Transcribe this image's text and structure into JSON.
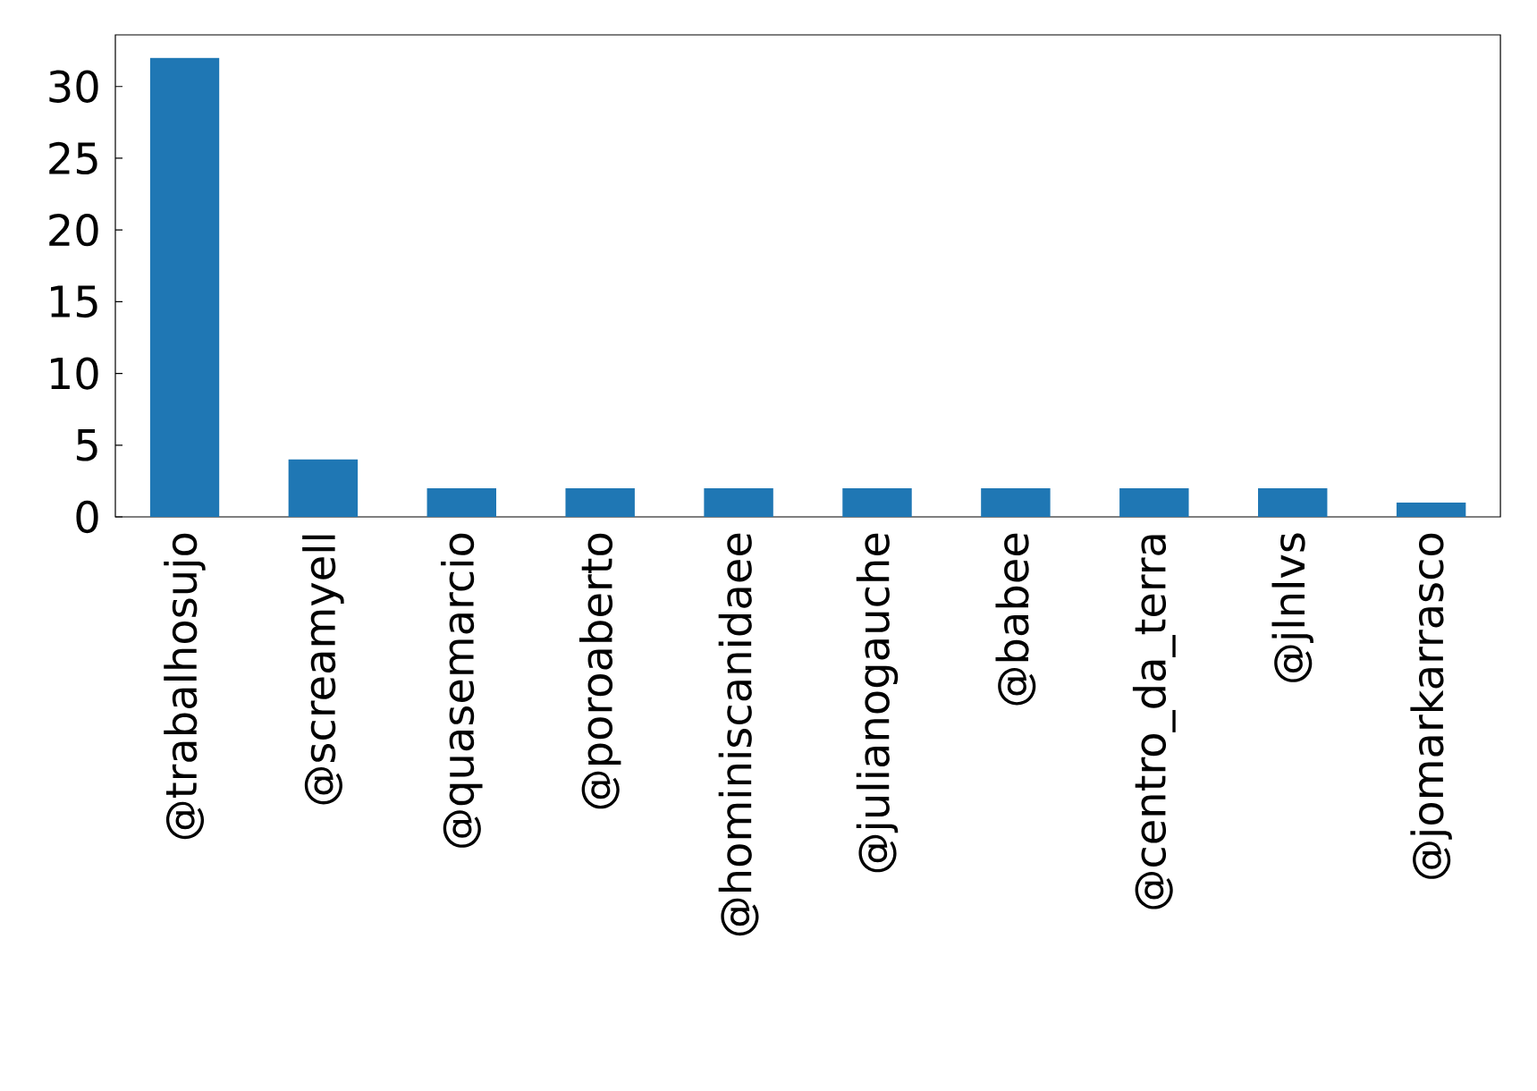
{
  "chart_data": {
    "type": "bar",
    "categories": [
      "@trabalhosujo",
      "@screamyell",
      "@quasemarcio",
      "@poroaberto",
      "@hominiscanidaee",
      "@julianogauche",
      "@babee",
      "@centro_da_terra",
      "@jlnlvs",
      "@jomarkarrasco"
    ],
    "values": [
      32,
      4,
      2,
      2,
      2,
      2,
      2,
      2,
      2,
      1
    ],
    "color": "#1f77b4",
    "ylim": [
      0,
      33.6
    ],
    "yticks": [
      0,
      5,
      10,
      15,
      20,
      25,
      30
    ]
  }
}
